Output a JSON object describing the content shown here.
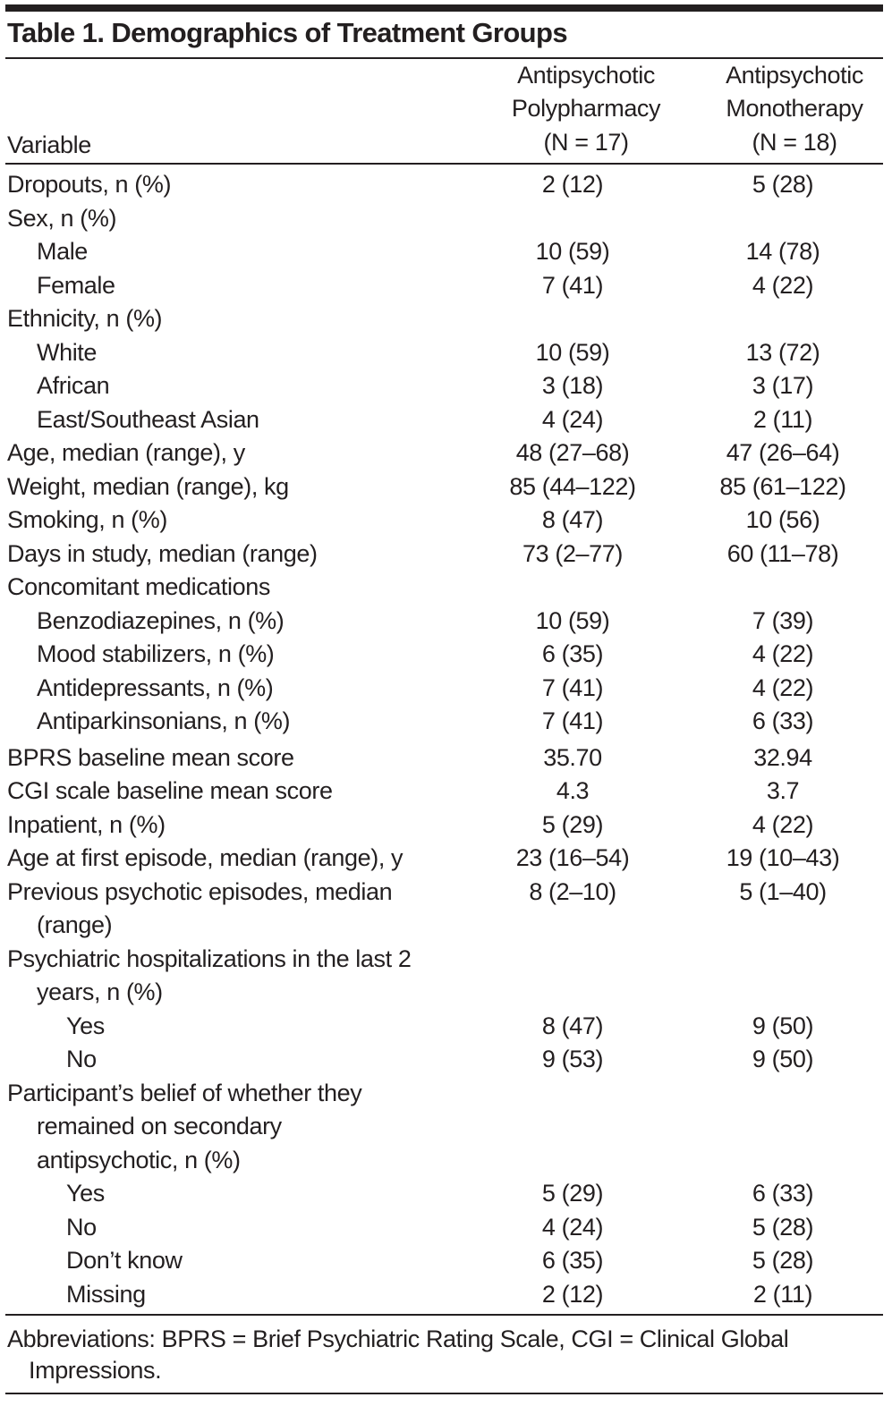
{
  "title": "Table 1. Demographics of Treatment Groups",
  "header": {
    "variable": "Variable",
    "col1": [
      "Antipsychotic",
      "Polypharmacy",
      "(N = 17)"
    ],
    "col2": [
      "Antipsychotic",
      "Monotherapy",
      "(N = 18)"
    ]
  },
  "rows": [
    {
      "label": "Dropouts, n (%)",
      "level": 0,
      "a": "2 (12)",
      "b": "5 (28)"
    },
    {
      "label": "Sex, n (%)",
      "level": 0,
      "a": "",
      "b": ""
    },
    {
      "label": "Male",
      "level": 1,
      "a": "10 (59)",
      "b": "14 (78)"
    },
    {
      "label": "Female",
      "level": 1,
      "a": "7 (41)",
      "b": "4 (22)"
    },
    {
      "label": "Ethnicity, n (%)",
      "level": 0,
      "a": "",
      "b": ""
    },
    {
      "label": "White",
      "level": 1,
      "a": "10 (59)",
      "b": "13 (72)"
    },
    {
      "label": "African",
      "level": 1,
      "a": "3 (18)",
      "b": "3 (17)"
    },
    {
      "label": "East/Southeast Asian",
      "level": 1,
      "a": "4 (24)",
      "b": "2 (11)"
    },
    {
      "label": "Age, median (range), y",
      "level": 0,
      "a": "48 (27–68)",
      "b": "47 (26–64)"
    },
    {
      "label": "Weight, median (range), kg",
      "level": 0,
      "a": "85 (44–122)",
      "b": "85 (61–122)"
    },
    {
      "label": "Smoking, n (%)",
      "level": 0,
      "a": "8 (47)",
      "b": "10 (56)"
    },
    {
      "label": "Days in study, median (range)",
      "level": 0,
      "a": "73 (2–77)",
      "b": "60 (11–78)"
    },
    {
      "label": "Concomitant medications",
      "level": 0,
      "a": "",
      "b": ""
    },
    {
      "label": "Benzodiazepines, n (%)",
      "level": 1,
      "a": "10 (59)",
      "b": "7 (39)"
    },
    {
      "label": "Mood stabilizers, n (%)",
      "level": 1,
      "a": "6 (35)",
      "b": "4 (22)"
    },
    {
      "label": "Antidepressants, n (%)",
      "level": 1,
      "a": "7 (41)",
      "b": "4 (22)"
    },
    {
      "label": "Antiparkinsonians, n (%)",
      "level": 1,
      "a": "7 (41)",
      "b": "6 (33)"
    },
    {
      "label": "BPRS baseline mean score",
      "level": 0,
      "a": "35.70",
      "b": "32.94",
      "gap": true
    },
    {
      "label": "CGI scale baseline mean score",
      "level": 0,
      "a": "4.3",
      "b": "3.7"
    },
    {
      "label": "Inpatient, n (%)",
      "level": 0,
      "a": "5 (29)",
      "b": "4 (22)"
    },
    {
      "label": "Age at first episode, median (range), y",
      "level": 0,
      "a": "23 (16–54)",
      "b": "19 (10–43)"
    },
    {
      "label": "Previous psychotic episodes, median (range)",
      "level": 0,
      "a": "8 (2–10)",
      "b": "5 (1–40)"
    },
    {
      "label": "Psychiatric hospitalizations in the last 2 years, n (%)",
      "level": 0,
      "a": "",
      "b": ""
    },
    {
      "label": "Yes",
      "level": 2,
      "a": "8 (47)",
      "b": "9 (50)"
    },
    {
      "label": "No",
      "level": 2,
      "a": "9 (53)",
      "b": "9 (50)"
    },
    {
      "label": "Participant’s belief of whether they remained on secondary antipsychotic, n (%)",
      "level": 0,
      "a": "",
      "b": "",
      "narrow": true
    },
    {
      "label": "Yes",
      "level": 2,
      "a": "5 (29)",
      "b": "6 (33)"
    },
    {
      "label": "No",
      "level": 2,
      "a": "4 (24)",
      "b": "5 (28)"
    },
    {
      "label": "Don’t know",
      "level": 2,
      "a": "6 (35)",
      "b": "5 (28)"
    },
    {
      "label": "Missing",
      "level": 2,
      "a": "2 (12)",
      "b": "2 (11)"
    }
  ],
  "footnote": "Abbreviations: BPRS = Brief Psychiatric Rating Scale, CGI = Clinical Global Impressions."
}
